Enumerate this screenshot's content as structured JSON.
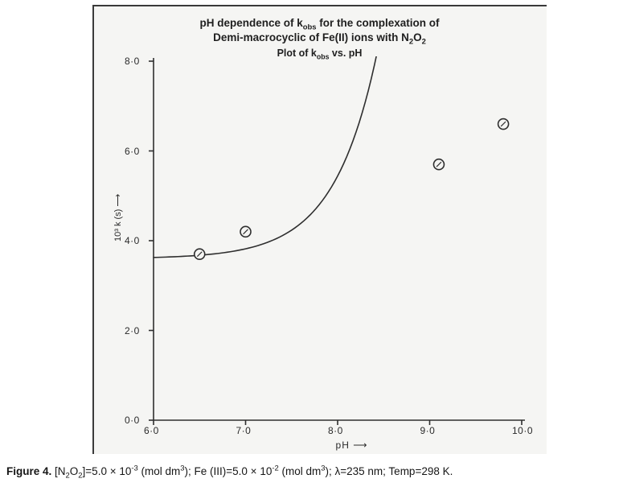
{
  "figure": {
    "title_lines": {
      "l1_pre": "pH dependence of k",
      "l1_sub": "obs",
      "l1_post": " for the complexation of",
      "l2_pre": "Demi-macrocyclic of Fe(II) ions with N",
      "l2_sub1": "2",
      "l2_mid": "O",
      "l2_sub2": "2",
      "l3_pre": "Plot of  k",
      "l3_sub": "obs",
      "l3_post": " vs. pH"
    },
    "xlabel": "pH  ⟶",
    "ylabel": "10³ k (s) ⟶",
    "caption": {
      "label": "Figure 4.",
      "text_pre": " [N",
      "s1": "2",
      "text_mid1": "O",
      "s2": "2",
      "text_mid2": "]=5.0 × 10",
      "s3": "-3",
      "text_mid3": " (mol dm",
      "s4": "3",
      "text_mid4": "); Fe (III)=5.0 × 10",
      "s5": "-2",
      "text_mid5": " (mol dm",
      "s6": "3",
      "text_end": "); λ=235 nm; Temp=298 K."
    }
  },
  "chart": {
    "type": "scatter-with-curve",
    "xlim": [
      6.0,
      10.0
    ],
    "ylim": [
      0.0,
      8.0
    ],
    "xticks": [
      6.0,
      7.0,
      8.0,
      9.0,
      10.0
    ],
    "xtick_labels": [
      "6·0",
      "7·0",
      "8·0",
      "9·0",
      "10·0"
    ],
    "yticks": [
      0.0,
      2.0,
      4.0,
      6.0,
      8.0
    ],
    "ytick_labels": [
      "0·0",
      "2·0",
      "4·0",
      "6·0",
      "8·0"
    ],
    "points": [
      {
        "x": 6.5,
        "y": 3.7
      },
      {
        "x": 7.0,
        "y": 4.2
      },
      {
        "x": 9.1,
        "y": 5.7
      },
      {
        "x": 9.8,
        "y": 6.6
      }
    ],
    "curve": {
      "a": 3.6,
      "b": 0.026,
      "c": 2.13
    },
    "colors": {
      "background": "#f5f5f3",
      "axis": "#2e2e2e",
      "curve": "#2e2e2e",
      "marker_stroke": "#2e2e2e",
      "marker_fill": "#f5f5f3"
    },
    "style": {
      "axis_width": 1.6,
      "curve_width": 1.6,
      "marker_radius": 6.5,
      "marker_stroke_width": 1.6,
      "tick_len": 6,
      "tick_font_size": 12,
      "title_font_weight": 700
    }
  }
}
